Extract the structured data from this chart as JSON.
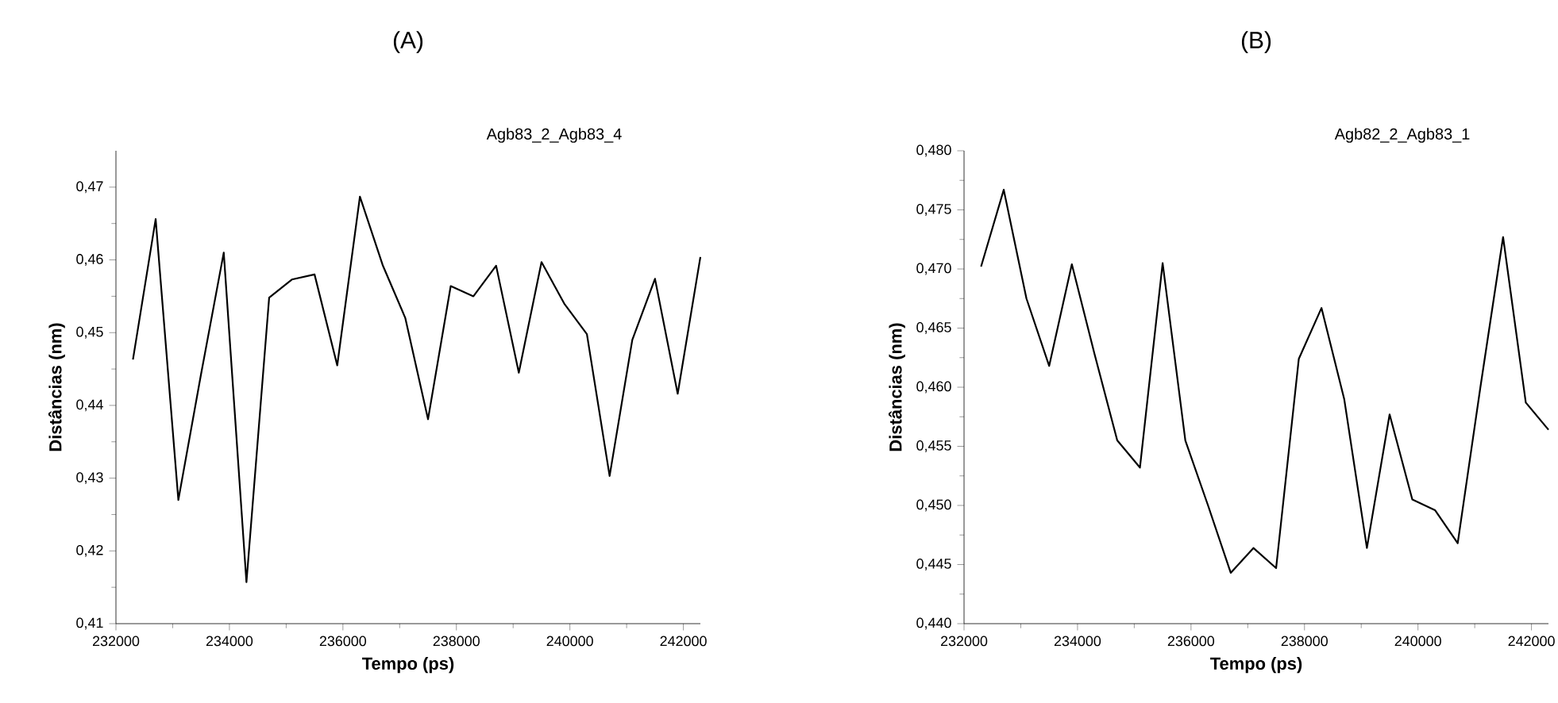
{
  "chart_data": [
    {
      "type": "line",
      "title": "(A)",
      "xlabel": "Tempo (ps)",
      "ylabel": "Distâncias (nm)",
      "annotations": [
        "Agb83_2_Agb83_4"
      ],
      "x": [
        232300,
        232700,
        233100,
        233500,
        233900,
        234300,
        234700,
        235100,
        235500,
        235900,
        236300,
        236700,
        237100,
        237500,
        237900,
        238300,
        238700,
        239100,
        239500,
        239900,
        240300,
        240700,
        241100,
        241500,
        241900,
        242300
      ],
      "series": [
        {
          "color": "#000000",
          "values": [
            0.4463,
            0.4656,
            0.427,
            0.4443,
            0.461,
            0.4157,
            0.4548,
            0.4573,
            0.458,
            0.4455,
            0.4687,
            0.4593,
            0.452,
            0.4381,
            0.4564,
            0.455,
            0.4592,
            0.4445,
            0.4597,
            0.454,
            0.4498,
            0.4303,
            0.449,
            0.4574,
            0.4416,
            0.4604
          ]
        }
      ],
      "xlim": [
        232000,
        242300
      ],
      "ylim": [
        0.41,
        0.475
      ],
      "xticks": [
        232000,
        234000,
        236000,
        238000,
        240000,
        242000
      ],
      "yticks": [
        {
          "value": 0.41,
          "label": "0,41"
        },
        {
          "value": 0.42,
          "label": "0,42"
        },
        {
          "value": 0.43,
          "label": "0,43"
        },
        {
          "value": 0.44,
          "label": "0,44"
        },
        {
          "value": 0.45,
          "label": "0,45"
        },
        {
          "value": 0.46,
          "label": "0,46"
        },
        {
          "value": 0.47,
          "label": "0,47"
        }
      ]
    },
    {
      "type": "line",
      "title": "(B)",
      "xlabel": "Tempo (ps)",
      "ylabel": "Distâncias (nm)",
      "annotations": [
        "Agb82_2_Agb83_1"
      ],
      "x": [
        232300,
        232700,
        233100,
        233500,
        233900,
        234300,
        234700,
        235100,
        235500,
        235900,
        236300,
        236700,
        237100,
        237500,
        237900,
        238300,
        238700,
        239100,
        239500,
        239900,
        240300,
        240700,
        241100,
        241500,
        241900,
        242300
      ],
      "series": [
        {
          "color": "#000000",
          "values": [
            0.4702,
            0.4767,
            0.4675,
            0.4618,
            0.4704,
            0.4628,
            0.4555,
            0.4532,
            0.4705,
            0.4555,
            0.45,
            0.4443,
            0.4464,
            0.4447,
            0.4624,
            0.4667,
            0.459,
            0.4464,
            0.4577,
            0.4505,
            0.4496,
            0.4468,
            0.46,
            0.4727,
            0.4587,
            0.4564
          ]
        }
      ],
      "xlim": [
        232000,
        242300
      ],
      "ylim": [
        0.44,
        0.48
      ],
      "xticks": [
        232000,
        234000,
        236000,
        238000,
        240000,
        242000
      ],
      "yticks": [
        {
          "value": 0.44,
          "label": "0,440"
        },
        {
          "value": 0.445,
          "label": "0,445"
        },
        {
          "value": 0.45,
          "label": "0,450"
        },
        {
          "value": 0.455,
          "label": "0,455"
        },
        {
          "value": 0.46,
          "label": "0,460"
        },
        {
          "value": 0.465,
          "label": "0,465"
        },
        {
          "value": 0.47,
          "label": "0,470"
        },
        {
          "value": 0.475,
          "label": "0,475"
        },
        {
          "value": 0.48,
          "label": "0,480"
        }
      ]
    }
  ]
}
